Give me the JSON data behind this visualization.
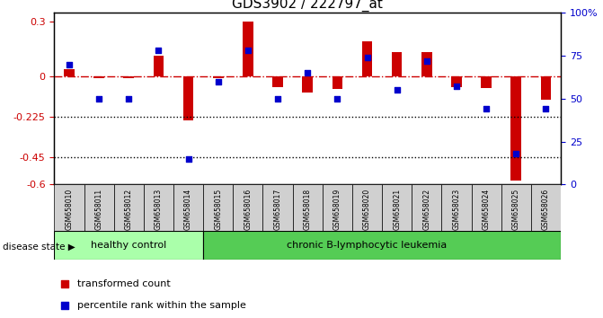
{
  "title": "GDS3902 / 222797_at",
  "samples": [
    "GSM658010",
    "GSM658011",
    "GSM658012",
    "GSM658013",
    "GSM658014",
    "GSM658015",
    "GSM658016",
    "GSM658017",
    "GSM658018",
    "GSM658019",
    "GSM658020",
    "GSM658021",
    "GSM658022",
    "GSM658023",
    "GSM658024",
    "GSM658025",
    "GSM658026"
  ],
  "red_values": [
    0.04,
    -0.01,
    -0.01,
    0.11,
    -0.245,
    -0.01,
    0.3,
    -0.06,
    -0.09,
    -0.07,
    0.19,
    0.13,
    0.13,
    -0.06,
    -0.065,
    -0.58,
    -0.13
  ],
  "blue_values": [
    70,
    50,
    50,
    78,
    15,
    60,
    78,
    50,
    65,
    50,
    74,
    55,
    72,
    57,
    44,
    18,
    44
  ],
  "group_labels": [
    "healthy control",
    "chronic B-lymphocytic leukemia"
  ],
  "group_boundaries": [
    0,
    5,
    17
  ],
  "ylim_left": [
    -0.6,
    0.35
  ],
  "ylim_right": [
    0,
    100
  ],
  "yticks_left": [
    0.3,
    0.0,
    -0.225,
    -0.45,
    -0.6
  ],
  "yticks_left_labels": [
    "0.3",
    "0",
    "-0.225",
    "-0.45",
    "-0.6"
  ],
  "yticks_right": [
    100,
    75,
    50,
    25,
    0
  ],
  "yticks_right_labels": [
    "100%",
    "75",
    "50",
    "25",
    "0"
  ],
  "dotted_lines": [
    -0.225,
    -0.45
  ],
  "bar_color": "#cc0000",
  "dot_color": "#0000cc",
  "healthy_color": "#aaffaa",
  "leukemia_color": "#55cc55",
  "legend_labels": [
    "transformed count",
    "percentile rank within the sample"
  ],
  "disease_state_label": "disease state"
}
